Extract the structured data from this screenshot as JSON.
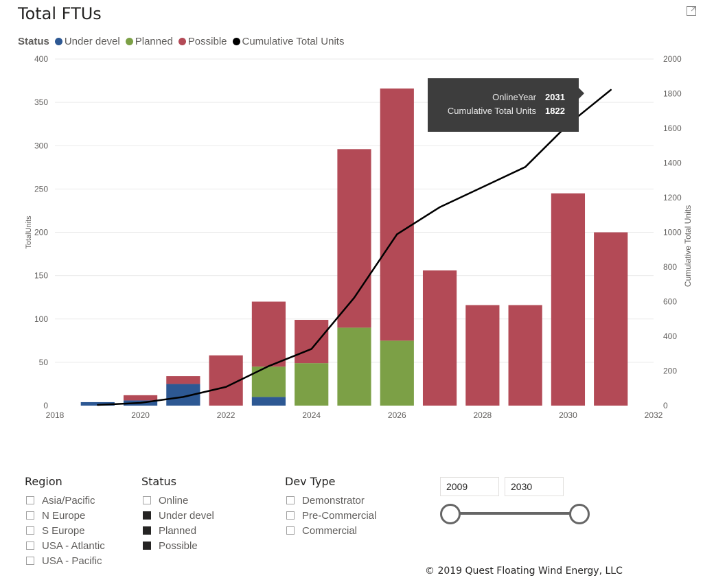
{
  "visual": {
    "title": "Total FTUs"
  },
  "legend": {
    "title": "Status",
    "items": [
      {
        "label": "Under devel",
        "color": "#2d5893"
      },
      {
        "label": "Planned",
        "color": "#7ca046"
      },
      {
        "label": "Possible",
        "color": "#b34a56"
      },
      {
        "label": "Cumulative Total Units",
        "color": "#000000"
      }
    ]
  },
  "chart_data": {
    "type": "bar",
    "stacked": true,
    "title": "Total FTUs",
    "xlabel": "",
    "ylabel": "TotalUnits",
    "y2label": "Cumulative Total Units",
    "xlim": [
      2018,
      2032
    ],
    "x_ticks": [
      2018,
      2020,
      2022,
      2024,
      2026,
      2028,
      2030,
      2032
    ],
    "ylim": [
      0,
      400
    ],
    "y_ticks": [
      0,
      50,
      100,
      150,
      200,
      250,
      300,
      350,
      400
    ],
    "y2lim": [
      0,
      2000
    ],
    "y2_ticks": [
      0,
      200,
      400,
      600,
      800,
      1000,
      1200,
      1400,
      1600,
      1800,
      2000
    ],
    "grid": true,
    "x": [
      2019,
      2020,
      2021,
      2022,
      2023,
      2024,
      2025,
      2026,
      2027,
      2028,
      2029,
      2030,
      2031
    ],
    "series": [
      {
        "name": "Under devel",
        "color": "#2d5893",
        "values": [
          4,
          6,
          25,
          0,
          10,
          0,
          0,
          0,
          0,
          0,
          0,
          0,
          0
        ]
      },
      {
        "name": "Planned",
        "color": "#7ca046",
        "values": [
          0,
          0,
          0,
          0,
          35,
          49,
          90,
          75,
          0,
          0,
          0,
          0,
          0
        ]
      },
      {
        "name": "Possible",
        "color": "#b34a56",
        "values": [
          0,
          6,
          9,
          58,
          75,
          50,
          206,
          291,
          156,
          116,
          116,
          245,
          200
        ]
      }
    ],
    "line_series": {
      "name": "Cumulative Total Units",
      "axis": "secondary",
      "color": "#000000",
      "values": [
        4,
        16,
        50,
        108,
        228,
        327,
        623,
        989,
        1145,
        1261,
        1377,
        1622,
        1822
      ]
    },
    "tooltip": {
      "rows": [
        {
          "label": "OnlineYear",
          "value": "2031"
        },
        {
          "label": "Cumulative Total Units",
          "value": "1822"
        }
      ]
    }
  },
  "slicers": {
    "region": {
      "title": "Region",
      "items": [
        {
          "label": "Asia/Pacific",
          "checked": false
        },
        {
          "label": "N Europe",
          "checked": false
        },
        {
          "label": "S Europe",
          "checked": false
        },
        {
          "label": "USA - Atlantic",
          "checked": false
        },
        {
          "label": "USA - Pacific",
          "checked": false
        }
      ]
    },
    "status": {
      "title": "Status",
      "items": [
        {
          "label": "Online",
          "checked": false
        },
        {
          "label": "Under devel",
          "checked": true
        },
        {
          "label": "Planned",
          "checked": true
        },
        {
          "label": "Possible",
          "checked": true
        }
      ]
    },
    "devtype": {
      "title": "Dev Type",
      "items": [
        {
          "label": "Demonstrator",
          "checked": false
        },
        {
          "label": "Pre-Commercial",
          "checked": false
        },
        {
          "label": "Commercial",
          "checked": false
        }
      ]
    }
  },
  "year_range": {
    "start": "2009",
    "end": "2030"
  },
  "footer": {
    "copyright": "© 2019 Quest Floating Wind Energy, LLC"
  }
}
